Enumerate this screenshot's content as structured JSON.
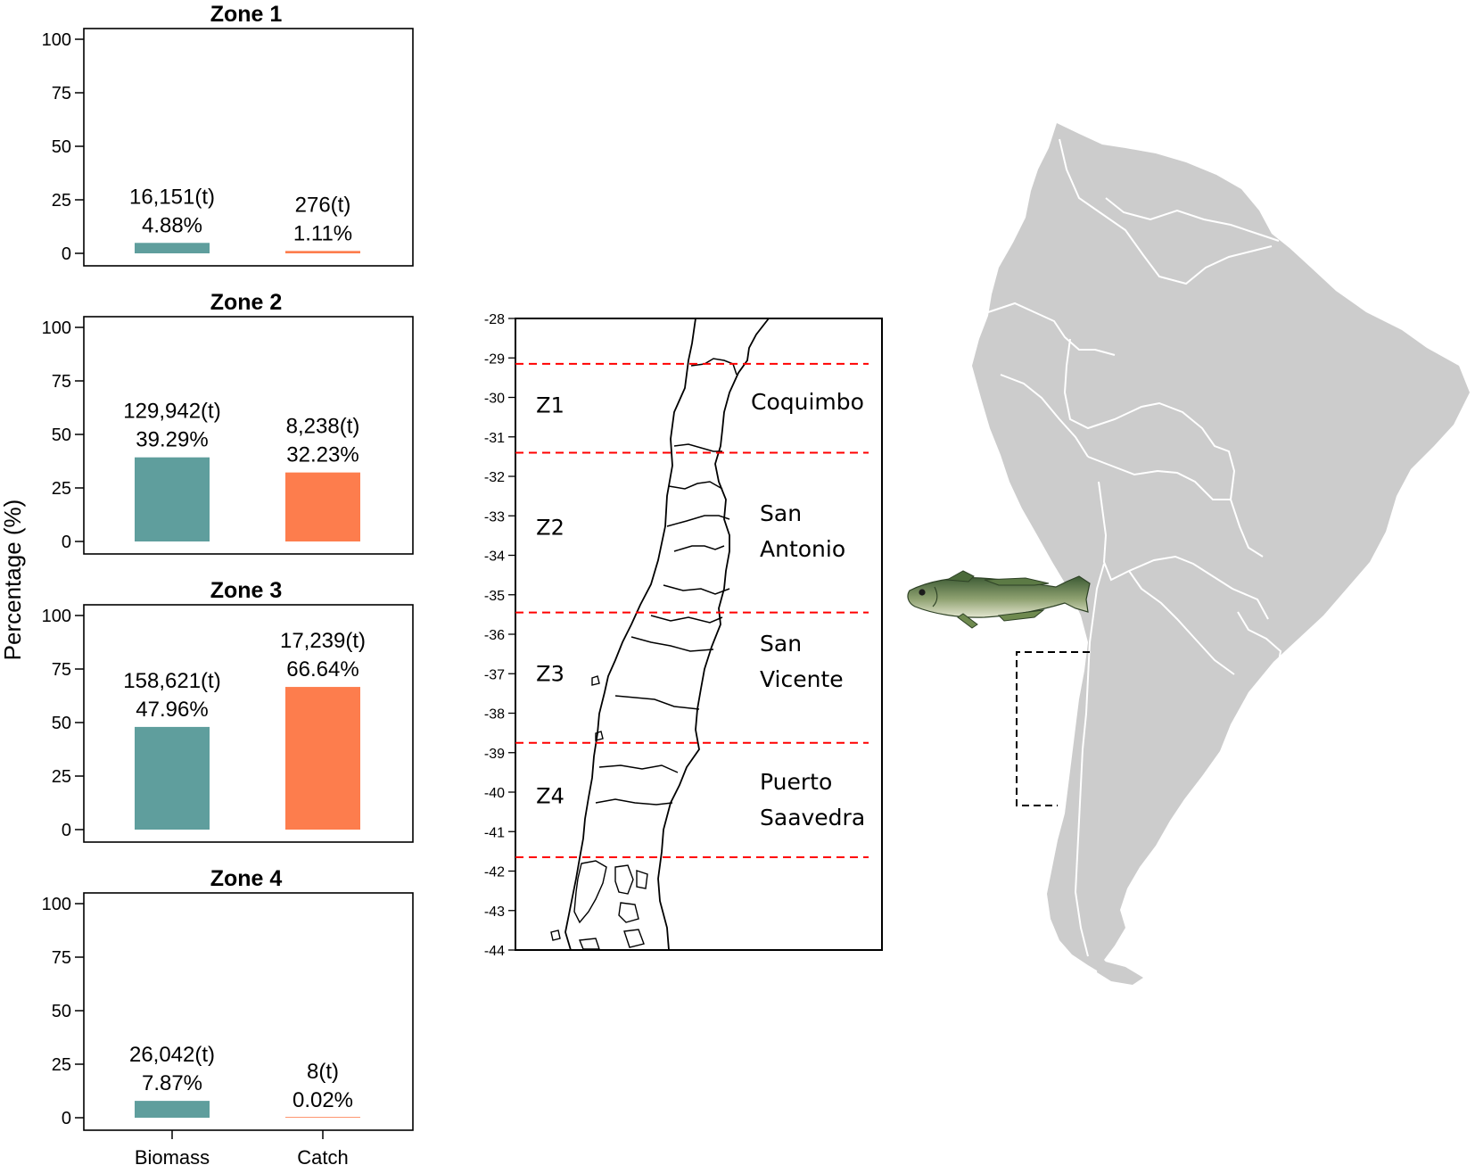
{
  "chart_data": {
    "type": "bar",
    "ylabel": "Percentage (%)",
    "ylim": [
      0,
      100
    ],
    "yticks": [
      "0",
      "25",
      "50",
      "75",
      "100"
    ],
    "categories": [
      "Biomass",
      "Catch"
    ],
    "colors": {
      "Biomass": "#5f9e9d",
      "Catch": "#fd7d4d"
    },
    "panels": [
      {
        "title": "Zone 1",
        "bars": [
          {
            "category": "Biomass",
            "value": 4.88,
            "tonnes": "16,151(t)",
            "percent": "4.88%"
          },
          {
            "category": "Catch",
            "value": 1.11,
            "tonnes": "276(t)",
            "percent": "1.11%"
          }
        ]
      },
      {
        "title": "Zone 2",
        "bars": [
          {
            "category": "Biomass",
            "value": 39.29,
            "tonnes": "129,942(t)",
            "percent": "39.29%"
          },
          {
            "category": "Catch",
            "value": 32.23,
            "tonnes": "8,238(t)",
            "percent": "32.23%"
          }
        ]
      },
      {
        "title": "Zone 3",
        "bars": [
          {
            "category": "Biomass",
            "value": 47.96,
            "tonnes": "158,621(t)",
            "percent": "47.96%"
          },
          {
            "category": "Catch",
            "value": 66.64,
            "tonnes": "17,239(t)",
            "percent": "66.64%"
          }
        ]
      },
      {
        "title": "Zone 4",
        "bars": [
          {
            "category": "Biomass",
            "value": 7.87,
            "tonnes": "26,042(t)",
            "percent": "7.87%"
          },
          {
            "category": "Catch",
            "value": 0.02,
            "tonnes": "8(t)",
            "percent": "0.02%"
          }
        ]
      }
    ]
  },
  "map": {
    "lat_ticks": [
      "-28",
      "-29",
      "-30",
      "-31",
      "-32",
      "-33",
      "-34",
      "-35",
      "-36",
      "-37",
      "-38",
      "-39",
      "-40",
      "-41",
      "-42",
      "-43",
      "-44"
    ],
    "lat_range": [
      -28,
      -44
    ],
    "zone_boundaries": [
      -29.15,
      -31.4,
      -35.45,
      -38.75,
      -41.65
    ],
    "boundary_color": "#ff0000",
    "zones": [
      {
        "label": "Z1",
        "lat": -30.2
      },
      {
        "label": "Z2",
        "lat": -33.3
      },
      {
        "label": "Z3",
        "lat": -37.0
      },
      {
        "label": "Z4",
        "lat": -40.1
      }
    ],
    "ports": [
      {
        "name": "Coquimbo",
        "lat": -30.1
      },
      {
        "name": "San Antonio",
        "lat": -33.4
      },
      {
        "name": "San Vicente",
        "lat": -36.7
      },
      {
        "name": "Puerto Saavedra",
        "lat": -40.2
      }
    ]
  },
  "continent_color": "#cccccc",
  "fish_icon": "hake-fish-icon"
}
